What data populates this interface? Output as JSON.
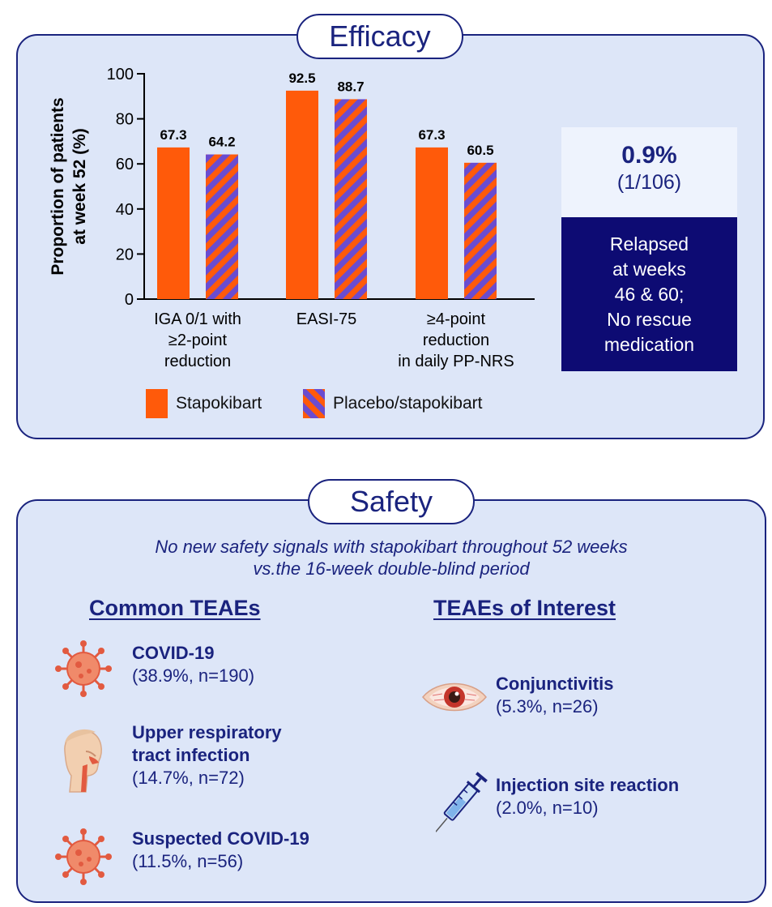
{
  "efficacy": {
    "title": "Efficacy",
    "legend": [
      {
        "label": "Stapokibart",
        "color": "#ff5a0a"
      },
      {
        "label": "Placebo/stapokibart",
        "color": "#6a4cd0"
      }
    ],
    "relapse": {
      "percent": "0.9%",
      "fraction": "(1/106)",
      "lines": [
        "Relapsed",
        "at weeks",
        "46 & 60;",
        "No rescue",
        "medication"
      ]
    }
  },
  "chart_data": {
    "type": "bar",
    "categories": [
      [
        "IGA 0/1 with",
        "≥2-point",
        "reduction"
      ],
      [
        "EASI-75"
      ],
      [
        "≥4-point",
        "reduction",
        "in daily PP-NRS"
      ]
    ],
    "series": [
      {
        "name": "Stapokibart",
        "values": [
          67.3,
          92.5,
          67.3
        ],
        "color": "#ff5a0a"
      },
      {
        "name": "Placebo/stapokibart",
        "values": [
          64.2,
          88.7,
          60.5
        ],
        "color": "#6a4cd0"
      }
    ],
    "data_labels": [
      [
        "67.3",
        "92.5",
        "67.3"
      ],
      [
        "64.2",
        "88.7",
        "60.5"
      ]
    ],
    "ylabel": [
      "Proportion of patients",
      "at week 52 (%)"
    ],
    "ylim": [
      0,
      100
    ],
    "yticks": [
      0,
      20,
      40,
      60,
      80,
      100
    ],
    "grid": false,
    "legend_position": "bottom"
  },
  "safety": {
    "title": "Safety",
    "subtitle_line1": "No new safety signals with stapokibart throughout 52 weeks",
    "subtitle_line2": "vs.the 16-week double-blind period",
    "common": {
      "heading": "Common TEAEs",
      "items": [
        {
          "name": "COVID-19",
          "stat": "(38.9%, n=190)",
          "icon": "virus-icon"
        },
        {
          "name_line1": "Upper respiratory",
          "name_line2": "tract infection",
          "stat": "(14.7%, n=72)",
          "icon": "respiratory-tract-icon"
        },
        {
          "name": "Suspected COVID-19",
          "stat": "(11.5%, n=56)",
          "icon": "virus-icon"
        }
      ]
    },
    "interest": {
      "heading": "TEAEs of Interest",
      "items": [
        {
          "name": "Conjunctivitis",
          "stat": "(5.3%, n=26)",
          "icon": "red-eye-icon"
        },
        {
          "name": "Injection site reaction",
          "stat": "(2.0%, n=10)",
          "icon": "syringe-icon"
        }
      ]
    }
  }
}
